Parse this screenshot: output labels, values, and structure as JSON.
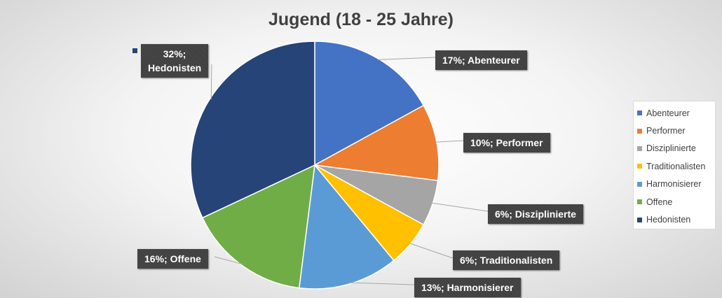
{
  "chart_data": {
    "type": "pie",
    "title": "Jugend (18 - 25 Jahre)",
    "slices": [
      {
        "name": "Abenteurer",
        "value": 17,
        "label": "17%; Abenteurer",
        "color": "#4472C4"
      },
      {
        "name": "Performer",
        "value": 10,
        "label": "10%; Performer",
        "color": "#ED7D31"
      },
      {
        "name": "Disziplinierte",
        "value": 6,
        "label": "6%; Disziplinierte",
        "color": "#A5A5A5"
      },
      {
        "name": "Traditionalisten",
        "value": 6,
        "label": "6%; Traditionalisten",
        "color": "#FFC000"
      },
      {
        "name": "Harmonisierer",
        "value": 13,
        "label": "13%; Harmonisierer",
        "color": "#5B9BD5"
      },
      {
        "name": "Offene",
        "value": 16,
        "label": "16%; Offene",
        "color": "#70AD47"
      },
      {
        "name": "Hedonisten",
        "value": 32,
        "label": "32%;\nHedonisten",
        "color": "#264478"
      }
    ],
    "legend": {
      "position": "right",
      "entries": [
        "Abenteurer",
        "Performer",
        "Disziplinierte",
        "Traditionalisten",
        "Harmonisierer",
        "Offene",
        "Hedonisten"
      ]
    },
    "start_angle": "top",
    "direction": "clockwise",
    "data_labels": "outside-with-leader-lines",
    "label_style": "dark boxes with white bold text"
  }
}
